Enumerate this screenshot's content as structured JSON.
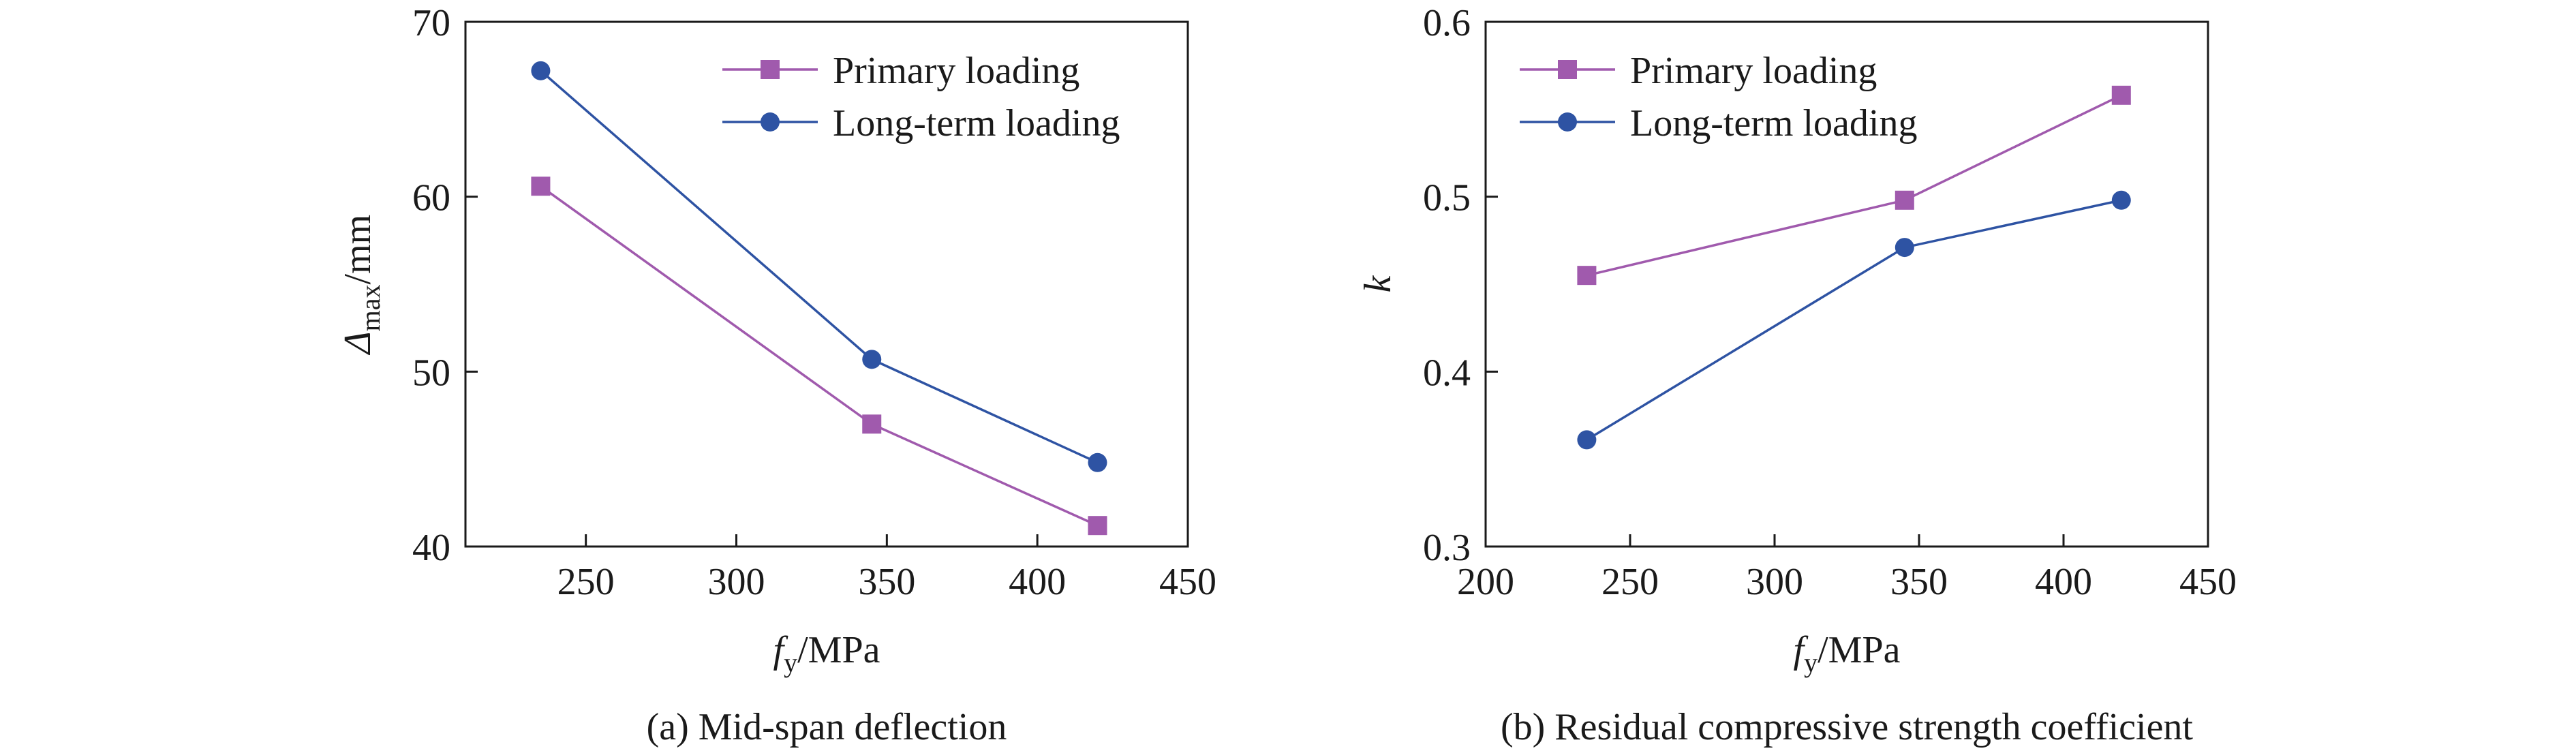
{
  "colors": {
    "primary": "#a05aad",
    "longterm": "#2e53a3",
    "axis": "#1a1a1a"
  },
  "chart_data": [
    {
      "type": "line",
      "caption": "(a) Mid-span deflection",
      "xlabel": {
        "base": "f",
        "sub": "y",
        "suffix": "/MPa"
      },
      "ylabel": {
        "base": "Δ",
        "sub": "max",
        "suffix": "/mm"
      },
      "xlim": [
        210,
        450
      ],
      "ylim": [
        40,
        70
      ],
      "xticks": [
        250,
        300,
        350,
        400,
        450
      ],
      "yticks": [
        40,
        50,
        60,
        70
      ],
      "xtick_labels": [
        "250",
        "300",
        "350",
        "400",
        "450"
      ],
      "ytick_labels": [
        "40",
        "50",
        "60",
        "70"
      ],
      "legend_position": "top-right",
      "series": [
        {
          "name": "Primary loading",
          "marker": "square",
          "color": "#a05aad",
          "x": [
            235,
            345,
            420
          ],
          "y": [
            60.6,
            47.0,
            41.2
          ]
        },
        {
          "name": "Long-term loading",
          "marker": "circle",
          "color": "#2e53a3",
          "x": [
            235,
            345,
            420
          ],
          "y": [
            67.2,
            50.7,
            44.8
          ]
        }
      ]
    },
    {
      "type": "line",
      "caption": "(b) Residual compressive strength coefficient",
      "xlabel": {
        "base": "f",
        "sub": "y",
        "suffix": "/MPa"
      },
      "ylabel": {
        "base": "k",
        "sub": "",
        "suffix": ""
      },
      "xlim": [
        200,
        450
      ],
      "ylim": [
        0.3,
        0.6
      ],
      "xticks": [
        200,
        250,
        300,
        350,
        400,
        450
      ],
      "yticks": [
        0.3,
        0.4,
        0.5,
        0.6
      ],
      "xtick_labels": [
        "200",
        "250",
        "300",
        "350",
        "400",
        "450"
      ],
      "ytick_labels": [
        "0.3",
        "0.4",
        "0.5",
        "0.6"
      ],
      "legend_position": "top-left",
      "series": [
        {
          "name": "Primary loading",
          "marker": "square",
          "color": "#a05aad",
          "x": [
            235,
            345,
            420
          ],
          "y": [
            0.455,
            0.498,
            0.558
          ]
        },
        {
          "name": "Long-term loading",
          "marker": "circle",
          "color": "#2e53a3",
          "x": [
            235,
            345,
            420
          ],
          "y": [
            0.361,
            0.471,
            0.498
          ]
        }
      ]
    }
  ]
}
